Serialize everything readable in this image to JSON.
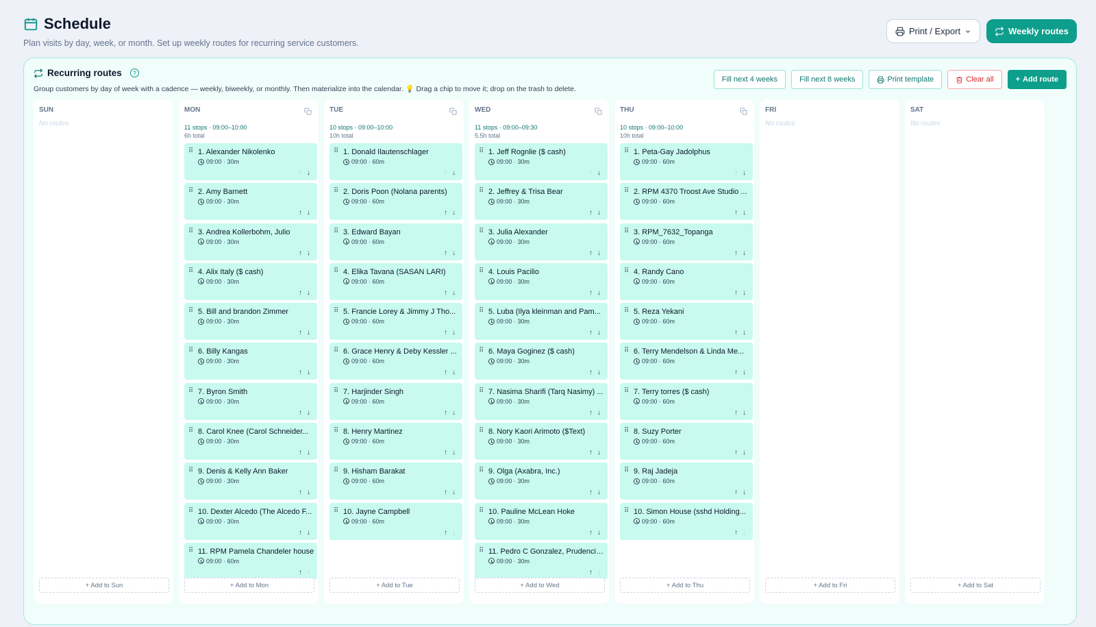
{
  "header": {
    "title": "Schedule",
    "subtitle": "Plan visits by day, week, or month. Set up weekly routes for recurring service customers.",
    "print_export_label": "Print / Export",
    "weekly_routes_label": "Weekly routes"
  },
  "panel": {
    "title": "Recurring routes",
    "description": "Group customers by day of week with a cadence — weekly, biweekly, or monthly. Then materialize into the calendar. 💡 Drag a chip to move it; drop on the trash to delete.",
    "fill4_label": "Fill next 4 weeks",
    "fill8_label": "Fill next 8 weeks",
    "print_template_label": "Print template",
    "clear_all_label": "Clear all",
    "add_route_label": "Add route"
  },
  "days": [
    {
      "name": "SUN",
      "empty_text": "No routes",
      "add_label": "+ Add to Sun",
      "stops": []
    },
    {
      "name": "MON",
      "summary": "11 stops · 09:00–10:00",
      "total": "6h total",
      "add_label": "+ Add to Mon",
      "stops": [
        {
          "label": "1. Alexander Nikolenko",
          "time": "09:00 · 30m"
        },
        {
          "label": "2. Amy Barnett",
          "time": "09:00 · 30m"
        },
        {
          "label": "3. Andrea Kollerbohm, Julio",
          "time": "09:00 · 30m"
        },
        {
          "label": "4. Alix Italy ($ cash)",
          "time": "09:00 · 30m"
        },
        {
          "label": "5. Bill and brandon Zimmer",
          "time": "09:00 · 30m"
        },
        {
          "label": "6. Billy Kangas",
          "time": "09:00 · 30m"
        },
        {
          "label": "7. Byron Smith",
          "time": "09:00 · 30m"
        },
        {
          "label": "8. Carol Knee (Carol Schneider...",
          "time": "09:00 · 30m"
        },
        {
          "label": "9. Denis & Kelly Ann Baker",
          "time": "09:00 · 30m"
        },
        {
          "label": "10. Dexter Alcedo (The Alcedo F...",
          "time": "09:00 · 30m"
        },
        {
          "label": "11. RPM Pamela Chandeler house",
          "time": "09:00 · 60m"
        }
      ]
    },
    {
      "name": "TUE",
      "summary": "10 stops · 09:00–10:00",
      "total": "10h total",
      "add_label": "+ Add to Tue",
      "stops": [
        {
          "label": "1. Donald Ilautenschlager",
          "time": "09:00 · 60m"
        },
        {
          "label": "2. Doris Poon (Nolana parents)",
          "time": "09:00 · 60m"
        },
        {
          "label": "3. Edward Bayan",
          "time": "09:00 · 60m"
        },
        {
          "label": "4. Elika Tavana (SASAN LARI)",
          "time": "09:00 · 60m"
        },
        {
          "label": "5. Francie Lorey & Jimmy J Tho...",
          "time": "09:00 · 60m"
        },
        {
          "label": "6. Grace Henry & Deby Kessler ...",
          "time": "09:00 · 60m"
        },
        {
          "label": "7. Harjinder Singh",
          "time": "09:00 · 60m"
        },
        {
          "label": "8. Henry Martinez",
          "time": "09:00 · 60m"
        },
        {
          "label": "9. Hisham Barakat",
          "time": "09:00 · 60m"
        },
        {
          "label": "10. Jayne Campbell",
          "time": "09:00 · 60m"
        }
      ]
    },
    {
      "name": "WED",
      "summary": "11 stops · 09:00–09:30",
      "total": "5.5h total",
      "add_label": "+ Add to Wed",
      "stops": [
        {
          "label": "1. Jeff Rognlie ($ cash)",
          "time": "09:00 · 30m"
        },
        {
          "label": "2. Jeffrey & Trisa Bear",
          "time": "09:00 · 30m"
        },
        {
          "label": "3. Julia Alexander",
          "time": "09:00 · 30m"
        },
        {
          "label": "4. Louis Pacilio",
          "time": "09:00 · 30m"
        },
        {
          "label": "5. Luba (Ilya kleinman and Pam...",
          "time": "09:00 · 30m"
        },
        {
          "label": "6. Maya Goginez ($ cash)",
          "time": "09:00 · 30m"
        },
        {
          "label": "7. Nasima Sharifi (Tarq Nasimy) ...",
          "time": "09:00 · 30m"
        },
        {
          "label": "8. Nory Kaori Arimoto ($Text)",
          "time": "09:00 · 30m"
        },
        {
          "label": "9. Olga (Axabra, Inc.)",
          "time": "09:00 · 30m"
        },
        {
          "label": "10. Pauline McLean Hoke",
          "time": "09:00 · 30m"
        },
        {
          "label": "11. Pedro C Gonzalez, Prudencia...",
          "time": "09:00 · 30m"
        }
      ]
    },
    {
      "name": "THU",
      "summary": "10 stops · 09:00–10:00",
      "total": "10h total",
      "add_label": "+ Add to Thu",
      "stops": [
        {
          "label": "1. Peta-Gay Jadolphus",
          "time": "09:00 · 60m"
        },
        {
          "label": "2. RPM 4370 Troost Ave Studio ...",
          "time": "09:00 · 60m"
        },
        {
          "label": "3. RPM_7632_Topanga",
          "time": "09:00 · 60m"
        },
        {
          "label": "4. Randy Cano",
          "time": "09:00 · 60m"
        },
        {
          "label": "5. Reza Yekani",
          "time": "09:00 · 60m"
        },
        {
          "label": "6. Terry Mendelson & Linda Me...",
          "time": "09:00 · 60m"
        },
        {
          "label": "7. Terry torres ($ cash)",
          "time": "09:00 · 60m"
        },
        {
          "label": "8. Suzy Porter",
          "time": "09:00 · 60m"
        },
        {
          "label": "9. Raj Jadeja",
          "time": "09:00 · 60m"
        },
        {
          "label": "10. Simon House (sshd Holding...",
          "time": "09:00 · 60m"
        }
      ]
    },
    {
      "name": "FRI",
      "empty_text": "No routes",
      "add_label": "+ Add to Fri",
      "stops": []
    },
    {
      "name": "SAT",
      "empty_text": "No routes",
      "add_label": "+ Add to Sat",
      "stops": []
    }
  ],
  "icons": {
    "calendar": "calendar-icon",
    "printer": "printer-icon",
    "repeat": "repeat-icon",
    "help": "help-icon",
    "trash": "trash-icon",
    "plus": "plus-icon",
    "copy": "copy-icon",
    "grip": "drag-handle-icon",
    "clock": "clock-icon",
    "move_up": "arrow-up-icon",
    "move_down": "arrow-down-icon"
  },
  "colors": {
    "accent": "#0e9f8c",
    "chip": "#c8faef",
    "danger": "#dc2626"
  }
}
